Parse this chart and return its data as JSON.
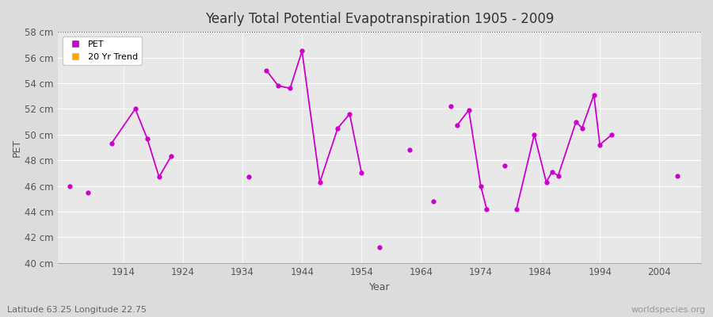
{
  "title": "Yearly Total Potential Evapotranspiration 1905 - 2009",
  "xlabel": "Year",
  "ylabel": "PET",
  "subtitle": "Latitude 63.25 Longitude 22.75",
  "watermark": "worldspecies.org",
  "ylim": [
    40,
    58
  ],
  "ytick_labels": [
    "40 cm",
    "42 cm",
    "44 cm",
    "46 cm",
    "48 cm",
    "50 cm",
    "52 cm",
    "54 cm",
    "56 cm",
    "58 cm"
  ],
  "ytick_values": [
    40,
    42,
    44,
    46,
    48,
    50,
    52,
    54,
    56,
    58
  ],
  "xtick_values": [
    1914,
    1924,
    1934,
    1944,
    1954,
    1964,
    1974,
    1984,
    1994,
    2004
  ],
  "xlim": [
    1903,
    2011
  ],
  "pet_color": "#cc00cc",
  "trend_color": "#ffa500",
  "bg_color": "#dcdcdc",
  "plot_bg_color": "#e8e8e8",
  "grid_color": "#ffffff",
  "dot_size": 12,
  "line_width": 1.3,
  "pet_data": [
    [
      1905,
      46.0
    ],
    [
      1908,
      45.5
    ],
    [
      1912,
      49.3
    ],
    [
      1916,
      52.0
    ],
    [
      1918,
      49.7
    ],
    [
      1920,
      46.7
    ],
    [
      1922,
      48.3
    ],
    [
      1935,
      46.7
    ],
    [
      1938,
      55.0
    ],
    [
      1940,
      53.8
    ],
    [
      1942,
      53.6
    ],
    [
      1944,
      56.5
    ],
    [
      1947,
      46.3
    ],
    [
      1950,
      50.5
    ],
    [
      1952,
      51.6
    ],
    [
      1954,
      47.0
    ],
    [
      1957,
      41.2
    ],
    [
      1962,
      48.8
    ],
    [
      1966,
      44.8
    ],
    [
      1969,
      52.2
    ],
    [
      1970,
      50.7
    ],
    [
      1972,
      51.9
    ],
    [
      1974,
      46.0
    ],
    [
      1975,
      44.2
    ],
    [
      1978,
      47.6
    ],
    [
      1980,
      44.2
    ],
    [
      1983,
      50.0
    ],
    [
      1985,
      46.3
    ],
    [
      1986,
      47.1
    ],
    [
      1987,
      46.8
    ],
    [
      1990,
      51.0
    ],
    [
      1991,
      50.5
    ],
    [
      1993,
      53.1
    ],
    [
      1994,
      49.2
    ],
    [
      1996,
      50.0
    ],
    [
      2007,
      46.8
    ]
  ],
  "connected_groups": [
    [
      [
        1912,
        49.3
      ],
      [
        1916,
        52.0
      ],
      [
        1918,
        49.7
      ],
      [
        1920,
        46.7
      ],
      [
        1922,
        48.3
      ]
    ],
    [
      [
        1938,
        55.0
      ],
      [
        1940,
        53.8
      ],
      [
        1942,
        53.6
      ],
      [
        1944,
        56.5
      ],
      [
        1947,
        46.3
      ],
      [
        1950,
        50.5
      ],
      [
        1952,
        51.6
      ],
      [
        1954,
        47.0
      ]
    ],
    [
      [
        1970,
        50.7
      ],
      [
        1972,
        51.9
      ],
      [
        1974,
        46.0
      ],
      [
        1975,
        44.2
      ]
    ],
    [
      [
        1980,
        44.2
      ],
      [
        1983,
        50.0
      ],
      [
        1985,
        46.3
      ],
      [
        1986,
        47.1
      ],
      [
        1987,
        46.8
      ],
      [
        1990,
        51.0
      ],
      [
        1991,
        50.5
      ],
      [
        1993,
        53.1
      ],
      [
        1994,
        49.2
      ],
      [
        1996,
        50.0
      ]
    ]
  ]
}
